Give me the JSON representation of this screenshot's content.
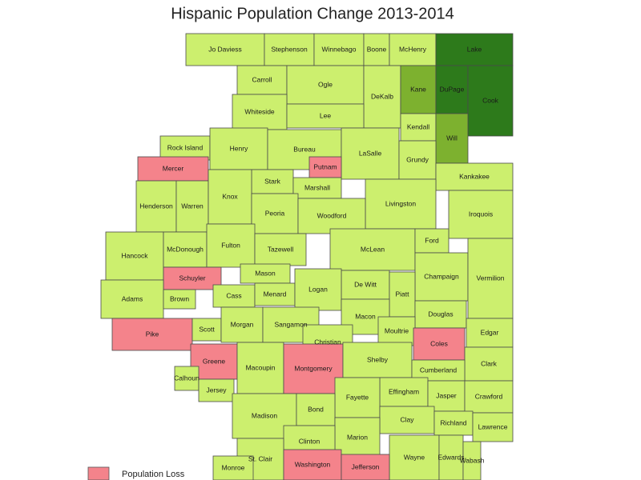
{
  "title": "Hispanic Population Change 2013-2014",
  "legend": {
    "label": "Population Loss",
    "color": "#f4838b"
  },
  "counties": [
    {
      "name": "Jo Daviess",
      "color": "#ccef6e"
    },
    {
      "name": "Stephenson",
      "color": "#ccef6e"
    },
    {
      "name": "Winnebago",
      "color": "#ccef6e"
    },
    {
      "name": "Boone",
      "color": "#ccef6e"
    },
    {
      "name": "McHenry",
      "color": "#ccef6e"
    },
    {
      "name": "Lake",
      "color": "#2d7a1b"
    },
    {
      "name": "Carroll",
      "color": "#ccef6e"
    },
    {
      "name": "Ogle",
      "color": "#ccef6e"
    },
    {
      "name": "DeKalb",
      "color": "#ccef6e"
    },
    {
      "name": "Kane",
      "color": "#7db12f"
    },
    {
      "name": "DuPage",
      "color": "#2d7a1b"
    },
    {
      "name": "Cook",
      "color": "#2d7a1b"
    },
    {
      "name": "Whiteside",
      "color": "#ccef6e"
    },
    {
      "name": "Lee",
      "color": "#ccef6e"
    },
    {
      "name": "Kendall",
      "color": "#ccef6e"
    },
    {
      "name": "Will",
      "color": "#7db12f"
    },
    {
      "name": "Rock Island",
      "color": "#ccef6e"
    },
    {
      "name": "Henry",
      "color": "#ccef6e"
    },
    {
      "name": "Bureau",
      "color": "#ccef6e"
    },
    {
      "name": "LaSalle",
      "color": "#ccef6e"
    },
    {
      "name": "Grundy",
      "color": "#ccef6e"
    },
    {
      "name": "Mercer",
      "color": "#f4838b"
    },
    {
      "name": "Putnam",
      "color": "#f4838b"
    },
    {
      "name": "Kankakee",
      "color": "#ccef6e"
    },
    {
      "name": "Stark",
      "color": "#ccef6e"
    },
    {
      "name": "Marshall",
      "color": "#ccef6e"
    },
    {
      "name": "Henderson",
      "color": "#ccef6e"
    },
    {
      "name": "Warren",
      "color": "#ccef6e"
    },
    {
      "name": "Knox",
      "color": "#ccef6e"
    },
    {
      "name": "Livingston",
      "color": "#ccef6e"
    },
    {
      "name": "Iroquois",
      "color": "#ccef6e"
    },
    {
      "name": "Peoria",
      "color": "#ccef6e"
    },
    {
      "name": "Woodford",
      "color": "#ccef6e"
    },
    {
      "name": "Hancock",
      "color": "#ccef6e"
    },
    {
      "name": "McDonough",
      "color": "#ccef6e"
    },
    {
      "name": "Fulton",
      "color": "#ccef6e"
    },
    {
      "name": "Tazewell",
      "color": "#ccef6e"
    },
    {
      "name": "McLean",
      "color": "#ccef6e"
    },
    {
      "name": "Ford",
      "color": "#ccef6e"
    },
    {
      "name": "Schuyler",
      "color": "#f4838b"
    },
    {
      "name": "Mason",
      "color": "#ccef6e"
    },
    {
      "name": "De Witt",
      "color": "#ccef6e"
    },
    {
      "name": "Champaign",
      "color": "#ccef6e"
    },
    {
      "name": "Vermilion",
      "color": "#ccef6e"
    },
    {
      "name": "Adams",
      "color": "#ccef6e"
    },
    {
      "name": "Brown",
      "color": "#ccef6e"
    },
    {
      "name": "Cass",
      "color": "#ccef6e"
    },
    {
      "name": "Menard",
      "color": "#ccef6e"
    },
    {
      "name": "Logan",
      "color": "#ccef6e"
    },
    {
      "name": "Piatt",
      "color": "#ccef6e"
    },
    {
      "name": "Pike",
      "color": "#f4838b"
    },
    {
      "name": "Scott",
      "color": "#ccef6e"
    },
    {
      "name": "Morgan",
      "color": "#ccef6e"
    },
    {
      "name": "Sangamon",
      "color": "#ccef6e"
    },
    {
      "name": "Macon",
      "color": "#ccef6e"
    },
    {
      "name": "Douglas",
      "color": "#ccef6e"
    },
    {
      "name": "Edgar",
      "color": "#ccef6e"
    },
    {
      "name": "Moultrie",
      "color": "#ccef6e"
    },
    {
      "name": "Christian",
      "color": "#ccef6e"
    },
    {
      "name": "Coles",
      "color": "#f4838b"
    },
    {
      "name": "Greene",
      "color": "#f4838b"
    },
    {
      "name": "Macoupin",
      "color": "#ccef6e"
    },
    {
      "name": "Montgomery",
      "color": "#f4838b"
    },
    {
      "name": "Shelby",
      "color": "#ccef6e"
    },
    {
      "name": "Clark",
      "color": "#ccef6e"
    },
    {
      "name": "Cumberland",
      "color": "#ccef6e"
    },
    {
      "name": "Calhoun",
      "color": "#ccef6e"
    },
    {
      "name": "Jersey",
      "color": "#ccef6e"
    },
    {
      "name": "Effingham",
      "color": "#ccef6e"
    },
    {
      "name": "Fayette",
      "color": "#ccef6e"
    },
    {
      "name": "Jasper",
      "color": "#ccef6e"
    },
    {
      "name": "Crawford",
      "color": "#ccef6e"
    },
    {
      "name": "Madison",
      "color": "#ccef6e"
    },
    {
      "name": "Bond",
      "color": "#ccef6e"
    },
    {
      "name": "Clay",
      "color": "#ccef6e"
    },
    {
      "name": "Richland",
      "color": "#ccef6e"
    },
    {
      "name": "Lawrence",
      "color": "#ccef6e"
    },
    {
      "name": "Marion",
      "color": "#ccef6e"
    },
    {
      "name": "Clinton",
      "color": "#ccef6e"
    },
    {
      "name": "St. Clair",
      "color": "#ccef6e"
    },
    {
      "name": "Wayne",
      "color": "#ccef6e"
    },
    {
      "name": "Edwards",
      "color": "#ccef6e"
    },
    {
      "name": "Wabash",
      "color": "#ccef6e"
    },
    {
      "name": "Washington",
      "color": "#f4838b"
    },
    {
      "name": "Jefferson",
      "color": "#f4838b"
    },
    {
      "name": "Monroe",
      "color": "#ccef6e"
    }
  ]
}
